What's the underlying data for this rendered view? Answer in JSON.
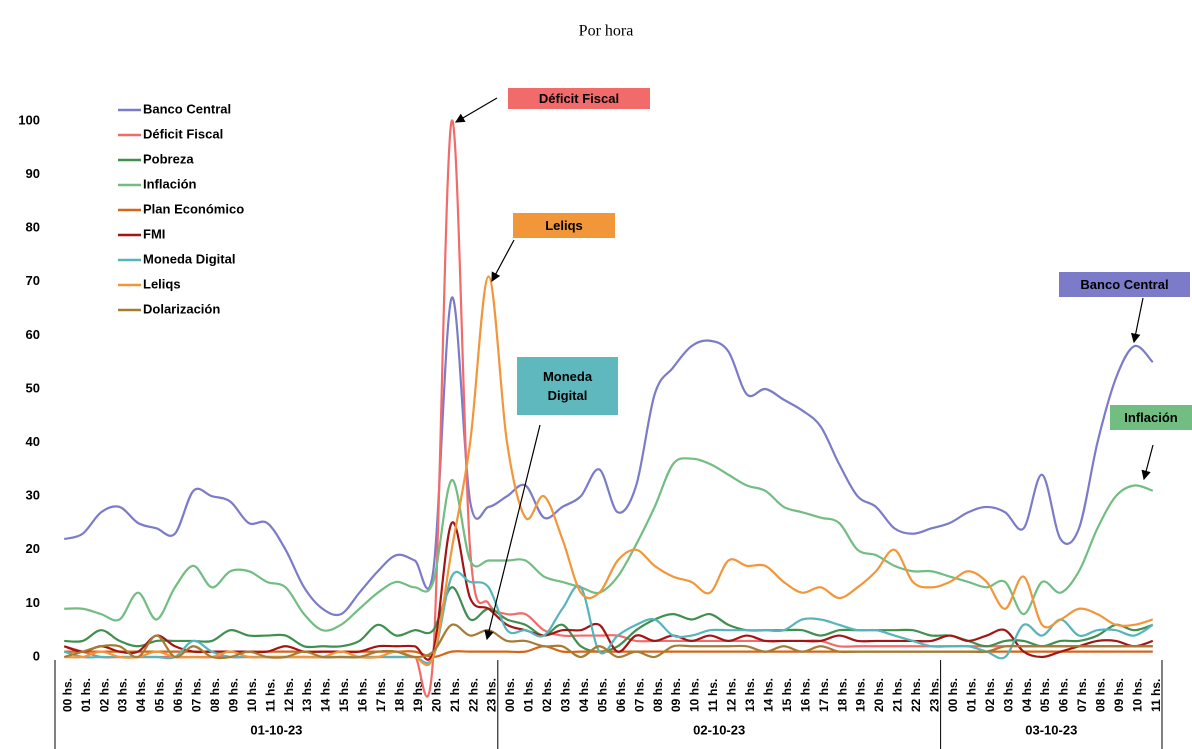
{
  "chart_data": {
    "type": "line",
    "title": "Por hora",
    "categories": [
      "00 hs.",
      "01 hs.",
      "02 hs.",
      "03 hs.",
      "04 hs.",
      "05 hs.",
      "06 hs.",
      "07 hs.",
      "08 hs.",
      "09 hs.",
      "10 hs.",
      "11 hs.",
      "12 hs.",
      "13 hs.",
      "14 hs.",
      "15 hs.",
      "16 hs.",
      "17 hs.",
      "18 hs.",
      "19 hs.",
      "20 hs.",
      "21 hs.",
      "22 hs.",
      "23 hs.",
      "00 hs.",
      "01 hs.",
      "02 hs.",
      "03 hs.",
      "04 hs.",
      "05 hs.",
      "06 hs.",
      "07 hs.",
      "08 hs.",
      "09 hs.",
      "10 hs.",
      "11 hs.",
      "12 hs.",
      "13 hs.",
      "14 hs.",
      "15 hs.",
      "16 hs.",
      "17 hs.",
      "18 hs.",
      "19 hs.",
      "20 hs.",
      "21 hs.",
      "22 hs.",
      "23 hs.",
      "00 hs.",
      "01 hs.",
      "02 hs.",
      "03 hs.",
      "04 hs.",
      "05 hs.",
      "06 hs.",
      "07 hs.",
      "08 hs.",
      "09 hs.",
      "10 hs.",
      "11 hs."
    ],
    "groups": [
      "01-10-23",
      "02-10-23",
      "03-10-23"
    ],
    "ylim": [
      0,
      100
    ],
    "yticks": [
      0,
      10,
      20,
      30,
      40,
      50,
      60,
      70,
      80,
      90,
      100
    ],
    "grid": false,
    "legend": "upper left",
    "series": [
      {
        "name": "Banco Central",
        "color": "#7b7bc9",
        "values": [
          22,
          23,
          27,
          28,
          25,
          24,
          23,
          31,
          30,
          29,
          25,
          25,
          20,
          13,
          9,
          8,
          12,
          16,
          19,
          18,
          16,
          67,
          29,
          28,
          30,
          32,
          26,
          28,
          30,
          35,
          27,
          32,
          49,
          54,
          58,
          59,
          57,
          49,
          50,
          48,
          46,
          43,
          36,
          30,
          28,
          24,
          23,
          24,
          25,
          27,
          28,
          27,
          24,
          34,
          22,
          24,
          40,
          52,
          58,
          55
        ]
      },
      {
        "name": "Déficit Fiscal",
        "color": "#f26b6b",
        "values": [
          2,
          1,
          0,
          0,
          0,
          0,
          0,
          0,
          0,
          0,
          0,
          0,
          0,
          0,
          0,
          0,
          0,
          0,
          0,
          0,
          0,
          100,
          20,
          10,
          8,
          8,
          5,
          4,
          4,
          4,
          4,
          3,
          3,
          3,
          3,
          3,
          3,
          3,
          3,
          3,
          3,
          3,
          2,
          2,
          2,
          2,
          2,
          2,
          2,
          2,
          2,
          2,
          2,
          2,
          2,
          2,
          2,
          2,
          2,
          2
        ]
      },
      {
        "name": "Pobreza",
        "color": "#3f8f4f",
        "values": [
          3,
          3,
          5,
          3,
          2,
          3,
          3,
          3,
          3,
          5,
          4,
          4,
          4,
          2,
          2,
          2,
          3,
          6,
          4,
          5,
          5,
          13,
          7,
          9,
          7,
          6,
          4,
          6,
          2,
          1,
          2,
          5,
          7,
          8,
          7,
          8,
          6,
          5,
          5,
          5,
          5,
          4,
          5,
          5,
          5,
          5,
          5,
          4,
          4,
          3,
          2,
          3,
          3,
          2,
          3,
          3,
          4,
          6,
          5,
          6
        ]
      },
      {
        "name": "Inflación",
        "color": "#72bd82",
        "values": [
          9,
          9,
          8,
          7,
          12,
          7,
          13,
          17,
          13,
          16,
          16,
          14,
          13,
          8,
          5,
          6,
          9,
          12,
          14,
          13,
          14,
          33,
          18,
          18,
          18,
          18,
          15,
          14,
          13,
          12,
          15,
          21,
          28,
          36,
          37,
          36,
          34,
          32,
          31,
          28,
          27,
          26,
          25,
          20,
          19,
          17,
          16,
          16,
          15,
          14,
          13,
          14,
          8,
          14,
          12,
          16,
          24,
          30,
          32,
          31
        ]
      },
      {
        "name": "Plan Económico",
        "color": "#d4661a",
        "values": [
          1,
          1,
          1,
          1,
          1,
          1,
          1,
          1,
          1,
          1,
          1,
          1,
          1,
          1,
          1,
          1,
          1,
          1,
          1,
          1,
          0,
          1,
          1,
          1,
          1,
          1,
          2,
          1,
          1,
          1,
          1,
          1,
          1,
          1,
          1,
          1,
          1,
          1,
          1,
          1,
          1,
          1,
          1,
          1,
          1,
          1,
          1,
          1,
          1,
          1,
          1,
          1,
          1,
          1,
          1,
          1,
          1,
          1,
          1,
          1
        ]
      },
      {
        "name": "FMI",
        "color": "#a31515",
        "values": [
          2,
          1,
          2,
          1,
          1,
          4,
          2,
          1,
          1,
          1,
          1,
          1,
          2,
          1,
          1,
          1,
          1,
          2,
          2,
          2,
          1,
          25,
          11,
          9,
          6,
          5,
          4,
          5,
          5,
          6,
          1,
          4,
          3,
          4,
          3,
          4,
          3,
          4,
          3,
          3,
          3,
          3,
          4,
          3,
          3,
          3,
          3,
          3,
          4,
          3,
          4,
          5,
          1,
          0,
          1,
          2,
          3,
          3,
          2,
          3
        ]
      },
      {
        "name": "Moneda Digital",
        "color": "#56b4bb",
        "values": [
          1,
          0,
          0,
          0,
          0,
          0,
          0,
          3,
          1,
          0,
          0,
          0,
          0,
          0,
          0,
          0,
          0,
          0,
          0,
          0,
          0,
          15,
          14,
          13,
          5,
          5,
          4,
          9,
          13,
          1,
          4,
          6,
          7,
          4,
          4,
          5,
          5,
          5,
          5,
          5,
          7,
          7,
          6,
          5,
          5,
          4,
          3,
          2,
          2,
          2,
          1,
          0,
          6,
          4,
          7,
          4,
          5,
          5,
          4,
          6
        ]
      },
      {
        "name": "Leliqs",
        "color": "#f2963a",
        "values": [
          0,
          0,
          1,
          0,
          0,
          1,
          0,
          0,
          0,
          1,
          0,
          0,
          0,
          0,
          0,
          1,
          0,
          0,
          1,
          0,
          0,
          20,
          40,
          71,
          40,
          26,
          30,
          22,
          12,
          12,
          18,
          20,
          17,
          15,
          14,
          12,
          18,
          17,
          17,
          14,
          12,
          13,
          11,
          13,
          16,
          20,
          14,
          13,
          14,
          16,
          14,
          9,
          15,
          6,
          7,
          9,
          8,
          6,
          6,
          7
        ]
      },
      {
        "name": "Dolarización",
        "color": "#a67c35",
        "values": [
          0,
          1,
          2,
          2,
          0,
          4,
          0,
          2,
          0,
          0,
          1,
          0,
          0,
          1,
          0,
          0,
          0,
          1,
          1,
          0,
          1,
          6,
          4,
          5,
          3,
          3,
          2,
          2,
          0,
          2,
          0,
          1,
          0,
          2,
          2,
          2,
          2,
          2,
          1,
          2,
          1,
          2,
          1,
          1,
          1,
          1,
          1,
          1,
          1,
          1,
          1,
          2,
          2,
          2,
          2,
          2,
          2,
          2,
          2,
          2
        ]
      }
    ],
    "annotations": [
      {
        "text": "Déficit Fiscal",
        "color": "#f26b6b"
      },
      {
        "text": "Leliqs",
        "color": "#f2963a"
      },
      {
        "text": "Moneda Digital",
        "color": "#5fb8bd"
      },
      {
        "text": "Banco Central",
        "color": "#7b7bc9"
      },
      {
        "text": "Inflación",
        "color": "#72bd82"
      }
    ]
  }
}
